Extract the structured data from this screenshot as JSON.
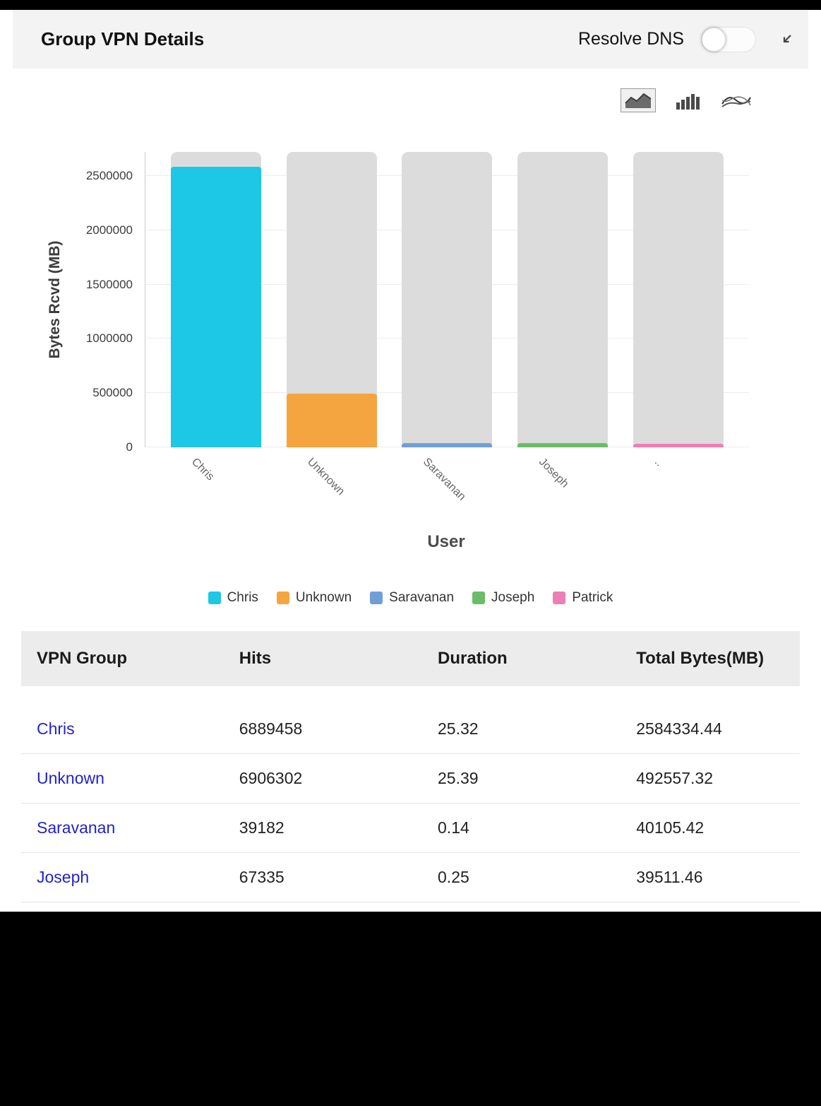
{
  "header": {
    "title": "Group VPN Details",
    "resolve_dns_label": "Resolve DNS",
    "resolve_dns_enabled": false
  },
  "chart_toolbar": {
    "selected": "area",
    "icons": [
      "area-chart-icon",
      "bar-chart-icon",
      "line-chart-icon"
    ]
  },
  "chart_data": {
    "type": "bar",
    "xlabel": "User",
    "ylabel": "Bytes Rcvd (MB)",
    "categories": [
      "Chris",
      "Unknown",
      "Saravanan",
      "Joseph",
      ".."
    ],
    "values": [
      2584334.44,
      492557.32,
      40105.42,
      39511.46,
      35000
    ],
    "bar_colors": [
      "#1dc7e6",
      "#f5a53f",
      "#6f9fd8",
      "#69bd66",
      "#ee7fb2"
    ],
    "track_value": 2720000,
    "track_color": "#dcdcdc",
    "ylim": [
      0,
      2720000
    ],
    "yticks": [
      0,
      500000,
      1000000,
      1500000,
      2000000,
      2500000
    ],
    "grid": true,
    "legend_position": "bottom",
    "legend": [
      {
        "label": "Chris",
        "color": "#1dc7e6"
      },
      {
        "label": "Unknown",
        "color": "#f5a53f"
      },
      {
        "label": "Saravanan",
        "color": "#6f9fd8"
      },
      {
        "label": "Joseph",
        "color": "#69bd66"
      },
      {
        "label": "Patrick",
        "color": "#ee7fb2"
      }
    ]
  },
  "table": {
    "columns": [
      "VPN Group",
      "Hits",
      "Duration",
      "Total Bytes(MB)"
    ],
    "rows": [
      [
        "Chris",
        "6889458",
        "25.32",
        "2584334.44"
      ],
      [
        "Unknown",
        "6906302",
        "25.39",
        "492557.32"
      ],
      [
        "Saravanan",
        "39182",
        "0.14",
        "40105.42"
      ],
      [
        "Joseph",
        "67335",
        "0.25",
        "39511.46"
      ]
    ]
  }
}
